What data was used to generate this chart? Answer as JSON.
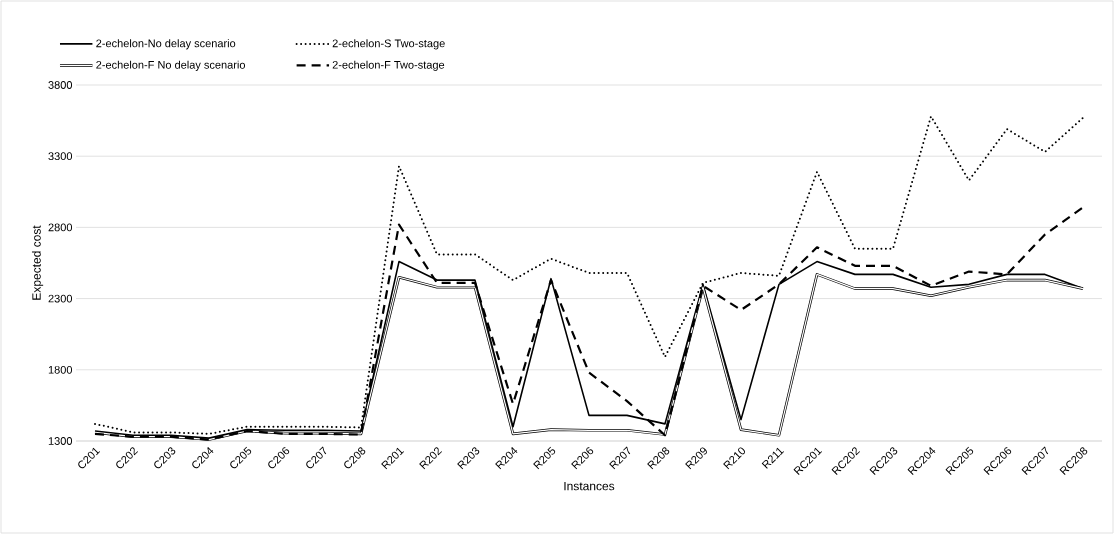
{
  "chart_data": {
    "type": "line",
    "xlabel": "Instances",
    "ylabel": "Expected cost",
    "categories": [
      "C201",
      "C202",
      "C203",
      "C204",
      "C205",
      "C206",
      "C207",
      "C208",
      "R201",
      "R202",
      "R203",
      "R204",
      "R205",
      "R206",
      "R207",
      "R208",
      "R209",
      "R210",
      "R211",
      "RC201",
      "RC202",
      "RC203",
      "RC204",
      "RC205",
      "RC206",
      "RC207",
      "RC208"
    ],
    "series": [
      {
        "name": "2-echelon-No delay scenario",
        "color": "#000000",
        "line_style": "solid",
        "values": [
          1370,
          1340,
          1340,
          1320,
          1380,
          1375,
          1375,
          1370,
          2560,
          2430,
          2430,
          1400,
          2440,
          1480,
          1480,
          1420,
          2400,
          1450,
          2400,
          2560,
          2470,
          2470,
          2380,
          2400,
          2470,
          2470,
          2370
        ]
      },
      {
        "name": "2-echelon-S Two-stage",
        "color": "#000000",
        "line_style": "dotted",
        "values": [
          1420,
          1360,
          1360,
          1350,
          1400,
          1400,
          1400,
          1395,
          3230,
          2610,
          2610,
          2430,
          2580,
          2480,
          2480,
          1890,
          2410,
          2480,
          2460,
          3190,
          2650,
          2650,
          3580,
          3130,
          3490,
          3330,
          3570
        ]
      },
      {
        "name": "2-echelon-F No delay scenario",
        "color": "#000000",
        "values": [
          1360,
          1330,
          1330,
          1310,
          1370,
          1355,
          1355,
          1350,
          2450,
          2380,
          2380,
          1350,
          1380,
          1375,
          1375,
          1345,
          2380,
          1380,
          1340,
          2470,
          2370,
          2370,
          2320,
          2380,
          2430,
          2430,
          2370
        ]
      },
      {
        "name": "2-echelon-F Two-stage",
        "color": "#000000",
        "line_style": "dashed",
        "values": [
          1350,
          1330,
          1330,
          1310,
          1370,
          1350,
          1350,
          1345,
          2820,
          2410,
          2410,
          1560,
          2430,
          1780,
          1580,
          1340,
          2390,
          2220,
          2400,
          2660,
          2530,
          2530,
          2390,
          2490,
          2470,
          2750,
          2940
        ]
      }
    ],
    "ylim": [
      1300,
      3800
    ],
    "yticks": [
      1300,
      1800,
      2300,
      2800,
      3300,
      3800
    ],
    "grid": "y",
    "legend": "top left",
    "marker": "none"
  }
}
